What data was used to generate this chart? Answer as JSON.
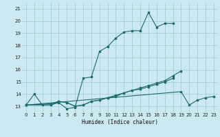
{
  "xlabel": "Humidex (Indice chaleur)",
  "bg_color": "#cce8f0",
  "line_color": "#1a6b6b",
  "grid_color": "#99cccc",
  "xlim": [
    -0.5,
    23.5
  ],
  "ylim": [
    12.5,
    21.5
  ],
  "xticks": [
    0,
    1,
    2,
    3,
    4,
    5,
    6,
    7,
    8,
    9,
    10,
    11,
    12,
    13,
    14,
    15,
    16,
    17,
    18,
    19,
    20,
    21,
    22,
    23
  ],
  "yticks": [
    13,
    14,
    15,
    16,
    17,
    18,
    19,
    20,
    21
  ],
  "series": [
    [
      [
        0,
        13.1
      ],
      [
        1,
        14.0
      ],
      [
        2,
        13.1
      ],
      [
        3,
        13.1
      ],
      [
        4,
        13.3
      ],
      [
        5,
        12.8
      ],
      [
        6,
        12.9
      ],
      [
        7,
        15.3
      ],
      [
        8,
        15.4
      ],
      [
        9,
        17.5
      ],
      [
        10,
        17.9
      ],
      [
        11,
        18.6
      ],
      [
        12,
        19.1
      ],
      [
        13,
        19.2
      ],
      [
        14,
        19.2
      ],
      [
        15,
        20.7
      ],
      [
        16,
        19.5
      ],
      [
        17,
        19.8
      ],
      [
        18,
        19.8
      ]
    ],
    [
      [
        0,
        13.1
      ],
      [
        3,
        13.1
      ],
      [
        4,
        13.4
      ],
      [
        5,
        13.3
      ],
      [
        6,
        13.0
      ],
      [
        7,
        13.1
      ],
      [
        8,
        13.4
      ],
      [
        9,
        13.5
      ],
      [
        10,
        13.7
      ],
      [
        11,
        13.8
      ],
      [
        12,
        14.1
      ],
      [
        13,
        14.3
      ],
      [
        14,
        14.5
      ],
      [
        15,
        14.7
      ],
      [
        16,
        14.9
      ],
      [
        17,
        15.1
      ],
      [
        18,
        15.5
      ],
      [
        19,
        15.9
      ]
    ],
    [
      [
        0,
        13.1
      ],
      [
        3,
        13.2
      ],
      [
        4,
        13.4
      ],
      [
        5,
        13.3
      ],
      [
        6,
        13.0
      ],
      [
        7,
        13.1
      ],
      [
        8,
        13.4
      ],
      [
        9,
        13.5
      ],
      [
        10,
        13.7
      ],
      [
        11,
        13.9
      ],
      [
        12,
        14.1
      ],
      [
        13,
        14.3
      ],
      [
        14,
        14.4
      ],
      [
        15,
        14.6
      ],
      [
        16,
        14.8
      ],
      [
        17,
        15.0
      ],
      [
        18,
        15.3
      ]
    ],
    [
      [
        0,
        13.1
      ],
      [
        19,
        14.2
      ],
      [
        20,
        13.1
      ],
      [
        21,
        13.5
      ],
      [
        22,
        13.7
      ],
      [
        23,
        13.8
      ]
    ]
  ]
}
